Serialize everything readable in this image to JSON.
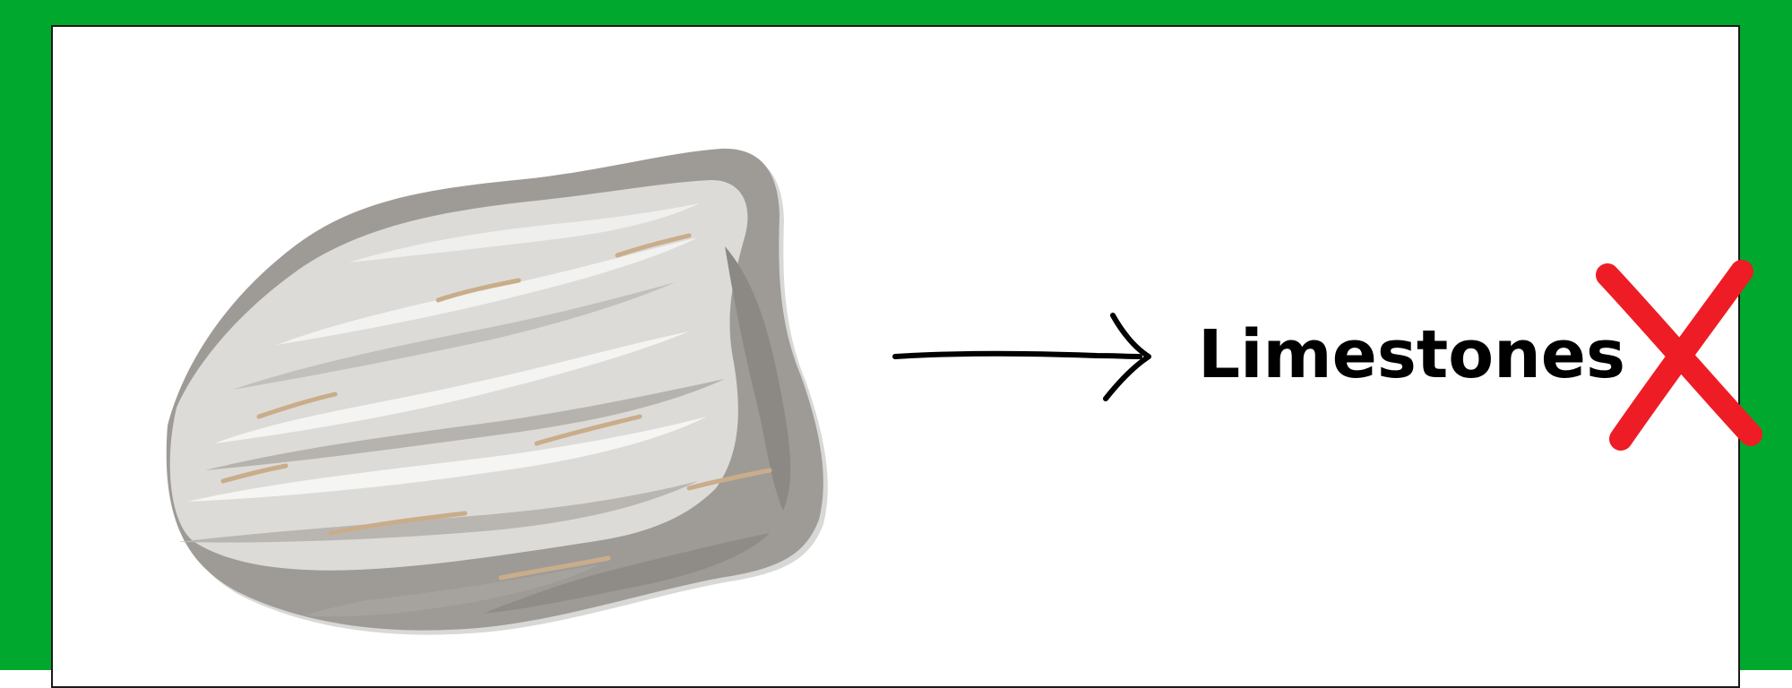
{
  "background_color": "#00a82d",
  "panel_color": "#ffffff",
  "label": {
    "text": "Limestones"
  },
  "icons": {
    "rock": "limestone-rock-illustration",
    "arrow": "arrow-right-icon",
    "cross": "red-x-cross-icon"
  },
  "colors": {
    "cross": "#ee1c25",
    "text": "#000000"
  }
}
